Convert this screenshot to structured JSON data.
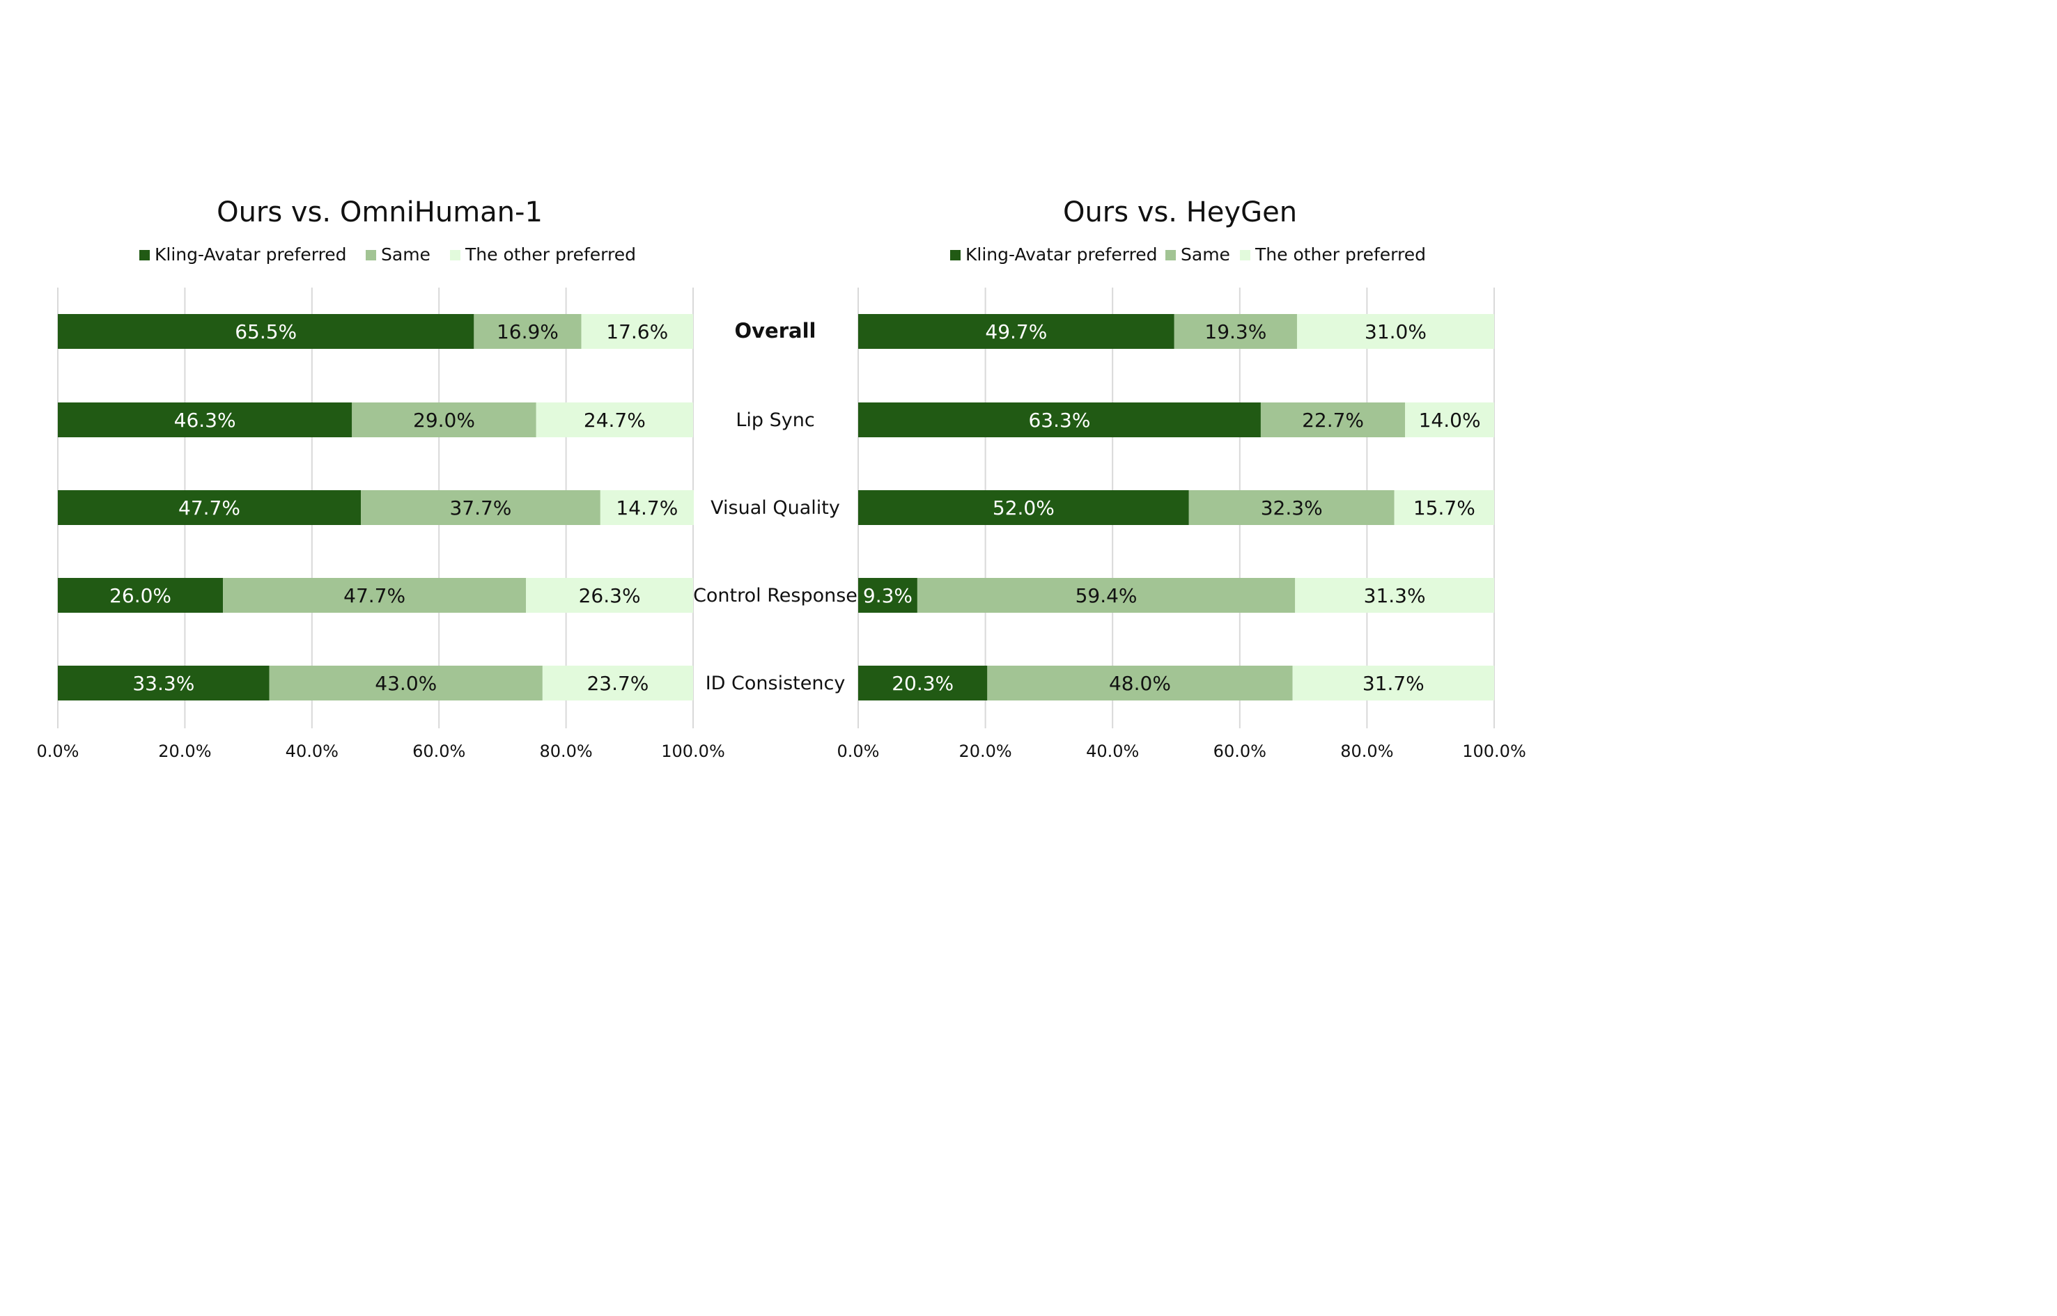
{
  "colors": {
    "kling": "#215a14",
    "same": "#a2c494",
    "other": "#e2fadc",
    "label_on_dark": "#ffffff",
    "label_on_light": "#111111"
  },
  "categories": [
    "Overall",
    "Lip Sync",
    "Visual Quality",
    "Control Response",
    "ID Consistency"
  ],
  "legend": [
    "Kling-Avatar preferred",
    "Same",
    "The other preferred"
  ],
  "chart_data": [
    {
      "type": "bar",
      "orientation": "horizontal",
      "stacked": true,
      "title": "Ours vs. OmniHuman-1",
      "categories": [
        "Overall",
        "Lip Sync",
        "Visual Quality",
        "Control Response",
        "ID Consistency"
      ],
      "series": [
        {
          "name": "Kling-Avatar preferred",
          "values": [
            65.5,
            46.3,
            47.7,
            26.0,
            33.3
          ],
          "labels": [
            "65.5%",
            "46.3%",
            "47.7%",
            "26.0%",
            "33.3%"
          ]
        },
        {
          "name": "Same",
          "values": [
            16.9,
            29.0,
            37.7,
            47.7,
            43.0
          ],
          "labels": [
            "16.9%",
            "29.0%",
            "37.7%",
            "47.7%",
            "43.0%"
          ]
        },
        {
          "name": "The other preferred",
          "values": [
            17.6,
            24.7,
            14.7,
            26.3,
            23.7
          ],
          "labels": [
            "17.6%",
            "24.7%",
            "14.7%",
            "26.3%",
            "23.7%"
          ]
        }
      ],
      "xlim": [
        0,
        100
      ],
      "xticks": [
        "0.0%",
        "20.0%",
        "40.0%",
        "60.0%",
        "80.0%",
        "100.0%"
      ],
      "grid": true,
      "legend_position": "top"
    },
    {
      "type": "bar",
      "orientation": "horizontal",
      "stacked": true,
      "title": "Ours vs. HeyGen",
      "categories": [
        "Overall",
        "Lip Sync",
        "Visual Quality",
        "Control Response",
        "ID Consistency"
      ],
      "series": [
        {
          "name": "Kling-Avatar preferred",
          "values": [
            49.7,
            63.3,
            52.0,
            9.3,
            20.3
          ],
          "labels": [
            "49.7%",
            "63.3%",
            "52.0%",
            "9.3%",
            "20.3%"
          ]
        },
        {
          "name": "Same",
          "values": [
            19.3,
            22.7,
            32.3,
            59.4,
            48.0
          ],
          "labels": [
            "19.3%",
            "22.7%",
            "32.3%",
            "59.4%",
            "48.0%"
          ]
        },
        {
          "name": "The other preferred",
          "values": [
            31.0,
            14.0,
            15.7,
            31.3,
            31.7
          ],
          "labels": [
            "31.0%",
            "14.0%",
            "15.7%",
            "31.3%",
            "31.7%"
          ]
        }
      ],
      "xlim": [
        0,
        100
      ],
      "xticks": [
        "0.0%",
        "20.0%",
        "40.0%",
        "60.0%",
        "80.0%",
        "100.0%"
      ],
      "grid": true,
      "legend_position": "top"
    }
  ]
}
